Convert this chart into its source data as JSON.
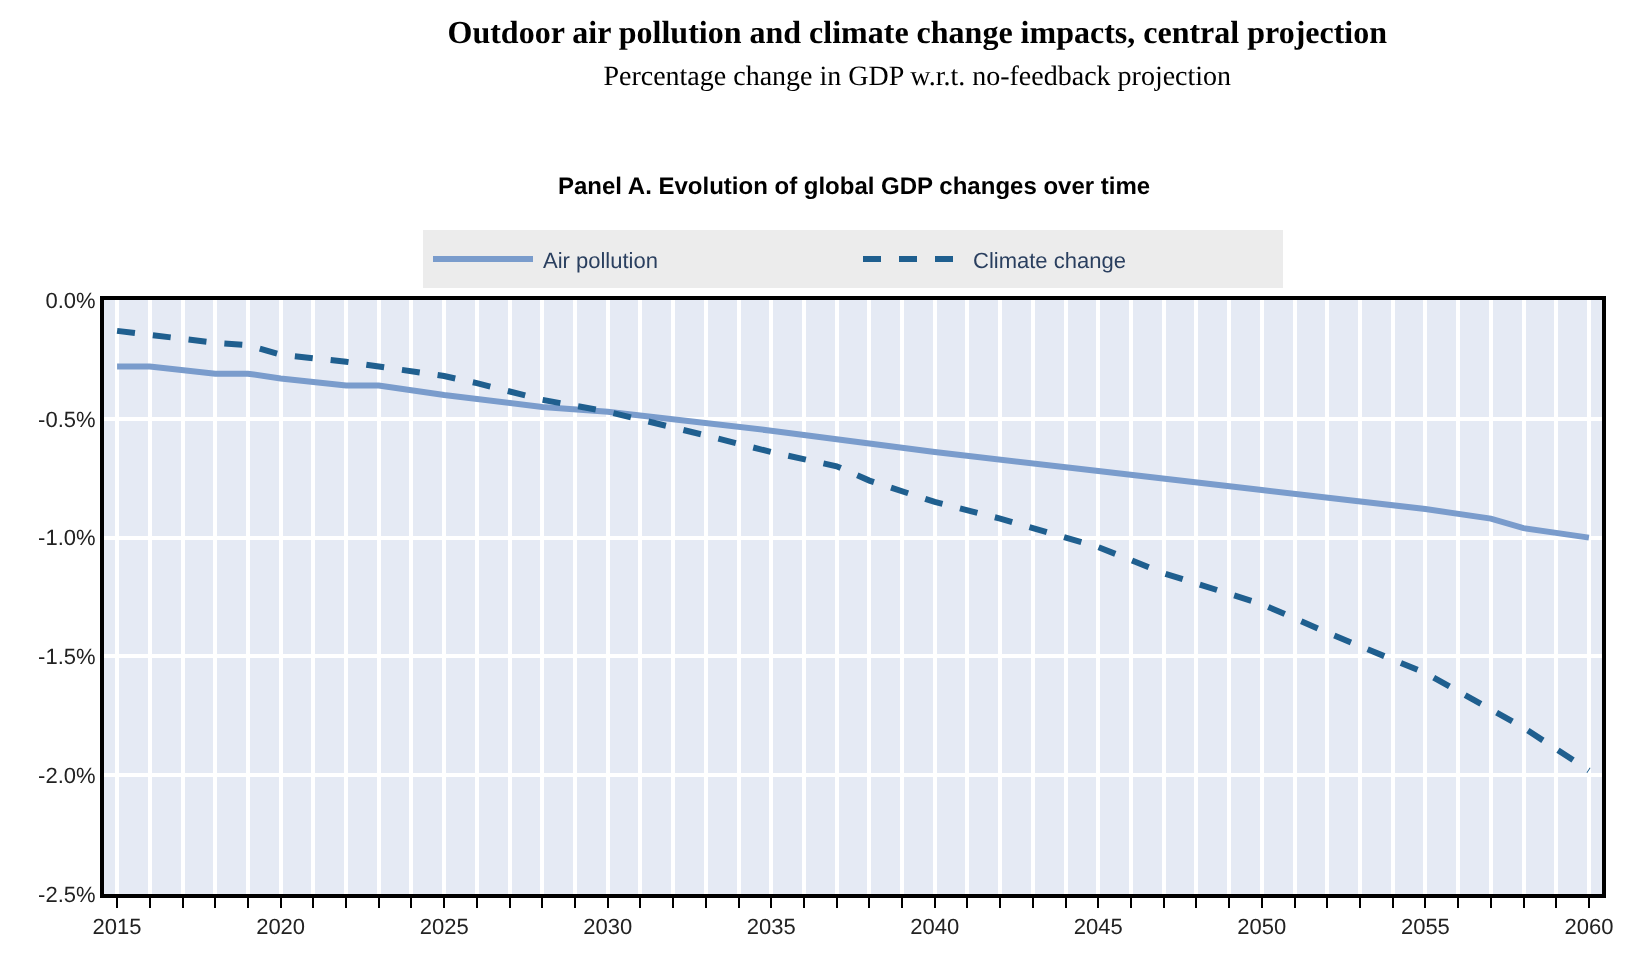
{
  "chart_data": {
    "type": "line",
    "title": "Outdoor air pollution and climate change impacts, central projection",
    "subtitle": "Percentage change in GDP w.r.t. no-feedback projection",
    "annotations": [
      "Panel A. Evolution of global GDP changes over time"
    ],
    "series": [
      {
        "name": "Air pollution",
        "color": "#7a9ccc",
        "line_style": "solid",
        "x": [
          2015,
          2016,
          2018,
          2019,
          2020,
          2022,
          2023,
          2025,
          2028,
          2030,
          2035,
          2040,
          2045,
          2050,
          2055,
          2057,
          2058,
          2060
        ],
        "values": [
          -0.28,
          -0.28,
          -0.31,
          -0.31,
          -0.33,
          -0.36,
          -0.36,
          -0.4,
          -0.45,
          -0.47,
          -0.55,
          -0.64,
          -0.72,
          -0.8,
          -0.88,
          -0.92,
          -0.96,
          -1.0
        ]
      },
      {
        "name": "Climate change",
        "color": "#1f5f8f",
        "line_style": "dashed",
        "x": [
          2015,
          2018,
          2019,
          2020,
          2022,
          2025,
          2026,
          2028,
          2030,
          2033,
          2035,
          2037,
          2038,
          2040,
          2042,
          2045,
          2047,
          2050,
          2052,
          2055,
          2058,
          2060
        ],
        "values": [
          -0.13,
          -0.18,
          -0.19,
          -0.23,
          -0.26,
          -0.32,
          -0.35,
          -0.42,
          -0.47,
          -0.57,
          -0.64,
          -0.7,
          -0.76,
          -0.85,
          -0.92,
          -1.04,
          -1.15,
          -1.28,
          -1.4,
          -1.57,
          -1.8,
          -1.98
        ]
      }
    ],
    "xlim": [
      2014.6,
      2060.4
    ],
    "ylim": [
      -2.5,
      0
    ],
    "xticks": [
      2015,
      {
        "value": 2016,
        "label": null
      },
      {
        "value": 2017,
        "label": null
      },
      {
        "value": 2018,
        "label": null
      },
      {
        "value": 2019,
        "label": null
      },
      2020,
      {
        "value": 2021,
        "label": null
      },
      {
        "value": 2022,
        "label": null
      },
      {
        "value": 2023,
        "label": null
      },
      {
        "value": 2024,
        "label": null
      },
      2025,
      {
        "value": 2026,
        "label": null
      },
      {
        "value": 2027,
        "label": null
      },
      {
        "value": 2028,
        "label": null
      },
      {
        "value": 2029,
        "label": null
      },
      2030,
      {
        "value": 2031,
        "label": null
      },
      {
        "value": 2032,
        "label": null
      },
      {
        "value": 2033,
        "label": null
      },
      {
        "value": 2034,
        "label": null
      },
      2035,
      {
        "value": 2036,
        "label": null
      },
      {
        "value": 2037,
        "label": null
      },
      {
        "value": 2038,
        "label": null
      },
      {
        "value": 2039,
        "label": null
      },
      2040,
      {
        "value": 2041,
        "label": null
      },
      {
        "value": 2042,
        "label": null
      },
      {
        "value": 2043,
        "label": null
      },
      {
        "value": 2044,
        "label": null
      },
      2045,
      {
        "value": 2046,
        "label": null
      },
      {
        "value": 2047,
        "label": null
      },
      {
        "value": 2048,
        "label": null
      },
      {
        "value": 2049,
        "label": null
      },
      2050,
      {
        "value": 2051,
        "label": null
      },
      {
        "value": 2052,
        "label": null
      },
      {
        "value": 2053,
        "label": null
      },
      {
        "value": 2054,
        "label": null
      },
      2055,
      {
        "value": 2056,
        "label": null
      },
      {
        "value": 2057,
        "label": null
      },
      {
        "value": 2058,
        "label": null
      },
      {
        "value": 2059,
        "label": null
      },
      2060
    ],
    "yticks": [
      {
        "value": -2.5,
        "label": "-2.5%"
      },
      {
        "value": -2.0,
        "label": "-2.0%"
      },
      {
        "value": -1.5,
        "label": "-1.5%"
      },
      {
        "value": -1.0,
        "label": "-1.0%"
      },
      {
        "value": -0.5,
        "label": "-0.5%"
      },
      {
        "value": 0,
        "label": "0.0%"
      }
    ],
    "grid": true,
    "legend": "top",
    "marker": "none"
  }
}
